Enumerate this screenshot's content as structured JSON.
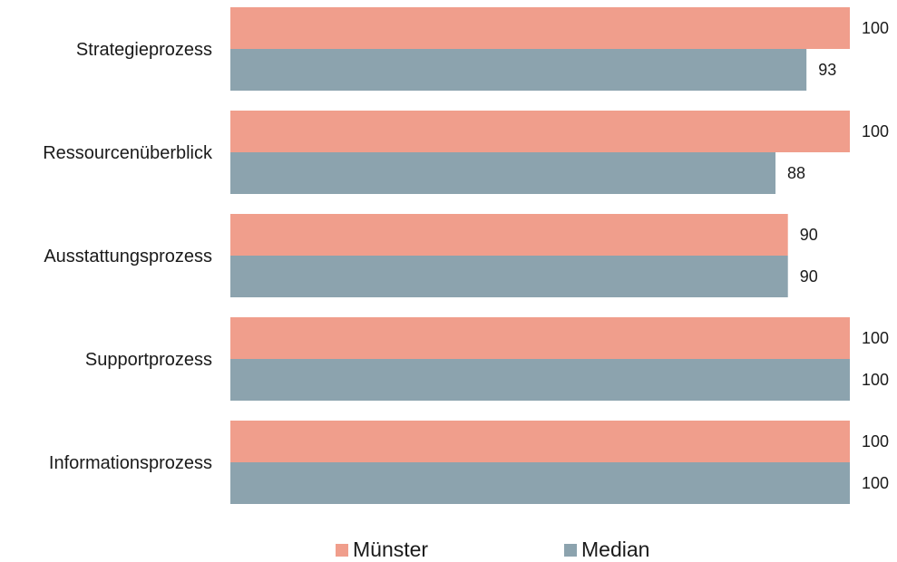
{
  "chart_data": {
    "type": "bar",
    "orientation": "horizontal",
    "categories": [
      "Strategieprozess",
      "Ressourcenüberblick",
      "Ausstattungsprozess",
      "Supportprozess",
      "Informationsprozess"
    ],
    "series": [
      {
        "name": "Münster",
        "values": [
          100,
          100,
          90,
          100,
          100
        ],
        "color": "#f09e8c"
      },
      {
        "name": "Median",
        "values": [
          93,
          88,
          90,
          100,
          100
        ],
        "color": "#8ca3ae"
      }
    ],
    "title": "",
    "xlabel": "",
    "ylabel": "",
    "xlim": [
      0,
      100
    ],
    "grid": false,
    "legend_position": "bottom",
    "data_labels": true
  },
  "legend": {
    "items": [
      {
        "label": "Münster",
        "color": "#f09e8c"
      },
      {
        "label": "Median",
        "color": "#8ca3ae"
      }
    ]
  }
}
